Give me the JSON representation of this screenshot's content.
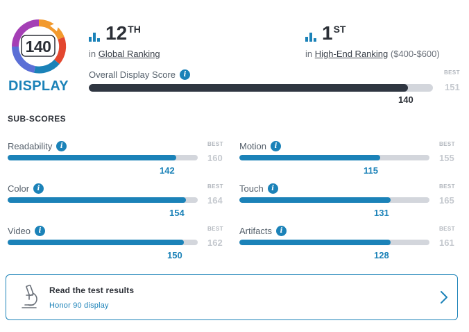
{
  "badge": {
    "score": "140",
    "label": "DISPLAY"
  },
  "rankings": {
    "global": {
      "number": "12",
      "suffix": "TH",
      "prefix": "in",
      "link": "Global Ranking"
    },
    "segment": {
      "number": "1",
      "suffix": "ST",
      "prefix": "in",
      "link": "High-End Ranking",
      "range": "($400-$600)"
    }
  },
  "overall": {
    "label": "Overall Display Score",
    "best_tag": "BEST",
    "best": "151",
    "score": "140",
    "fraction": 0.927
  },
  "subscores": {
    "title": "SUB-SCORES",
    "best_tag": "BEST",
    "items": [
      {
        "label": "Readability",
        "score": "142",
        "best": "160",
        "fraction": 0.8875
      },
      {
        "label": "Motion",
        "score": "115",
        "best": "155",
        "fraction": 0.742
      },
      {
        "label": "Color",
        "score": "154",
        "best": "164",
        "fraction": 0.939
      },
      {
        "label": "Touch",
        "score": "131",
        "best": "165",
        "fraction": 0.794
      },
      {
        "label": "Video",
        "score": "150",
        "best": "162",
        "fraction": 0.926
      },
      {
        "label": "Artifacts",
        "score": "128",
        "best": "161",
        "fraction": 0.795
      }
    ]
  },
  "card": {
    "title": "Read the test results",
    "subtitle": "Honor 90 display"
  },
  "colors": {
    "accent": "#1b82b8",
    "dark_bar": "#2f3641",
    "track": "#d3d6dc"
  }
}
